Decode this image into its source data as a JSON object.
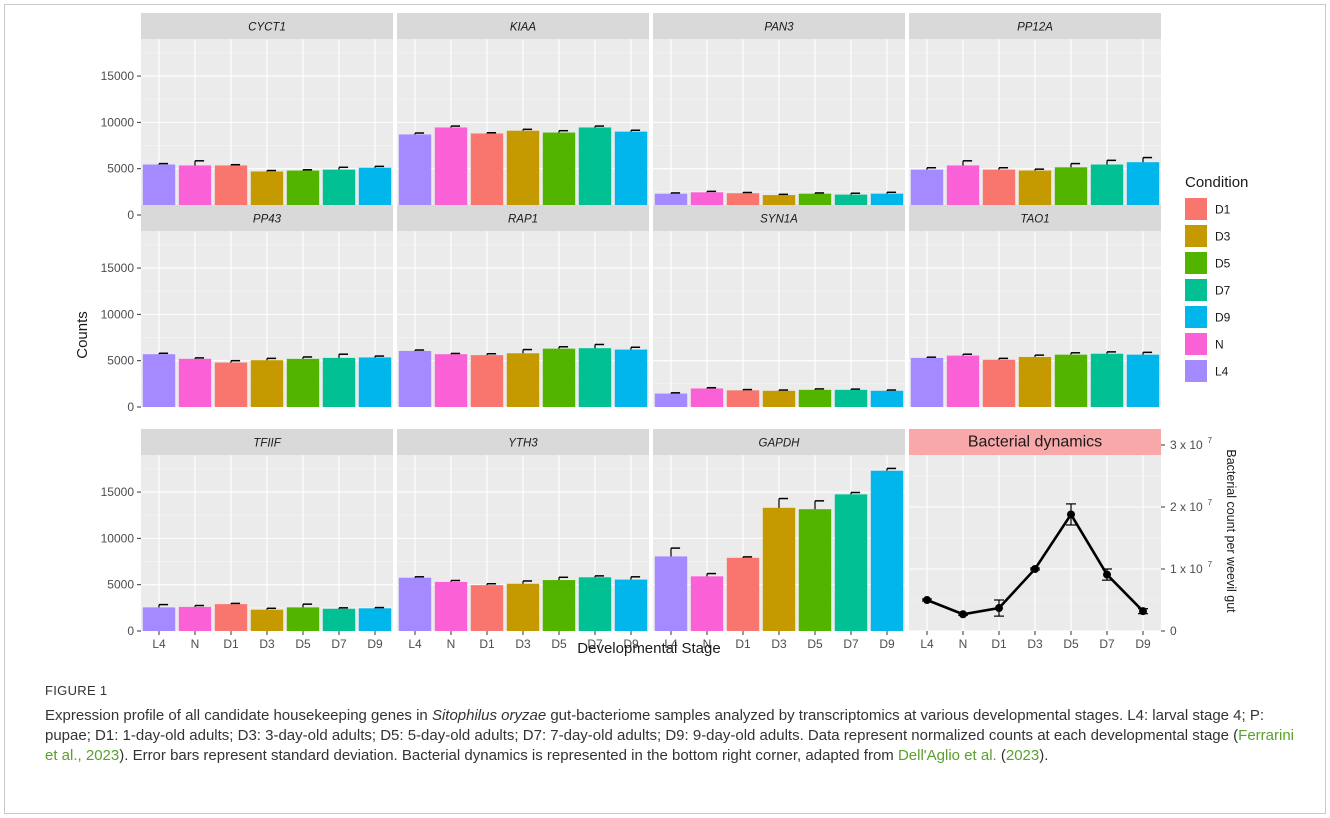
{
  "chart_data": {
    "type": "bar",
    "layout": "facet-grid",
    "xlabel": "Developmental Stage",
    "ylabel": "Counts",
    "categories": [
      "L4",
      "N",
      "D1",
      "D3",
      "D5",
      "D7",
      "D9"
    ],
    "ylim": [
      0,
      19000
    ],
    "yticks": [
      0,
      5000,
      10000,
      15000
    ],
    "grid": true,
    "legend": {
      "title": "Condition",
      "placement": "right",
      "items": [
        {
          "label": "D1",
          "color": "#F8766D"
        },
        {
          "label": "D3",
          "color": "#C49A00"
        },
        {
          "label": "D5",
          "color": "#53B400"
        },
        {
          "label": "D7",
          "color": "#00C094"
        },
        {
          "label": "D9",
          "color": "#00B6EB"
        },
        {
          "label": "N",
          "color": "#FB61D7"
        },
        {
          "label": "L4",
          "color": "#A58AFF"
        }
      ]
    },
    "colors": {
      "L4": "#A58AFF",
      "N": "#FB61D7",
      "D1": "#F8766D",
      "D3": "#C49A00",
      "D5": "#53B400",
      "D7": "#00C094",
      "D9": "#00B6EB"
    },
    "panels": [
      {
        "title": "CYCT1",
        "values": [
          5450,
          5350,
          5350,
          4700,
          4800,
          4900,
          5100
        ],
        "errors": [
          100,
          500,
          80,
          100,
          80,
          250,
          150
        ]
      },
      {
        "title": "KIAA",
        "values": [
          8700,
          9450,
          8800,
          9100,
          8900,
          9450,
          9000
        ],
        "errors": [
          150,
          150,
          80,
          150,
          200,
          150,
          150
        ]
      },
      {
        "title": "PAN3",
        "values": [
          2300,
          2450,
          2350,
          2150,
          2300,
          2200,
          2300
        ],
        "errors": [
          80,
          100,
          80,
          80,
          80,
          150,
          150
        ]
      },
      {
        "title": "PP12A",
        "values": [
          4900,
          5350,
          4900,
          4800,
          5150,
          5450,
          5700
        ],
        "errors": [
          200,
          500,
          200,
          150,
          400,
          450,
          500
        ]
      },
      {
        "title": "PP43",
        "values": [
          5700,
          5200,
          4800,
          5050,
          5200,
          5300,
          5350
        ],
        "errors": [
          100,
          100,
          200,
          200,
          200,
          400,
          150
        ]
      },
      {
        "title": "RAP1",
        "values": [
          6050,
          5700,
          5600,
          5800,
          6300,
          6350,
          6200
        ],
        "errors": [
          100,
          80,
          150,
          400,
          200,
          400,
          250
        ]
      },
      {
        "title": "SYN1A",
        "values": [
          1450,
          2000,
          1800,
          1750,
          1850,
          1850,
          1750
        ],
        "errors": [
          80,
          80,
          80,
          80,
          100,
          80,
          80
        ]
      },
      {
        "title": "TAO1",
        "values": [
          5300,
          5550,
          5100,
          5400,
          5650,
          5750,
          5650
        ],
        "errors": [
          80,
          150,
          150,
          200,
          200,
          200,
          250
        ]
      },
      {
        "title": "TFIIF",
        "values": [
          2550,
          2600,
          2900,
          2300,
          2550,
          2400,
          2450
        ],
        "errors": [
          300,
          150,
          80,
          150,
          350,
          100,
          80
        ]
      },
      {
        "title": "YTH3",
        "values": [
          5750,
          5300,
          4950,
          5100,
          5500,
          5800,
          5550
        ],
        "errors": [
          100,
          150,
          150,
          300,
          300,
          150,
          300
        ]
      },
      {
        "title": "GAPDH",
        "values": [
          8050,
          5900,
          7900,
          13300,
          13150,
          14750,
          17300
        ],
        "errors": [
          900,
          300,
          100,
          1000,
          900,
          200,
          250
        ]
      }
    ],
    "secondary": {
      "type": "line",
      "title": "Bacterial dynamics",
      "ylabel": "Bacterial count per weevil gut",
      "ylim": [
        0,
        30000000
      ],
      "yticks_values": [
        0,
        10000000,
        20000000,
        30000000
      ],
      "ytick_labels": [
        {
          "mantissa": "0",
          "exp": ""
        },
        {
          "mantissa": "1 x 10",
          "exp": "7"
        },
        {
          "mantissa": "2 x 10",
          "exp": "7"
        },
        {
          "mantissa": "3 x 10",
          "exp": "7"
        }
      ],
      "values": [
        5000000,
        2700000,
        3700000,
        10000000,
        18800000,
        9100000,
        3200000
      ],
      "errors": [
        150000,
        150000,
        1300000,
        150000,
        1700000,
        900000,
        400000
      ],
      "title_bg": "#F8A8A8"
    }
  },
  "caption": {
    "label": "FIGURE 1",
    "t1": "Expression profile of all candidate housekeeping genes in ",
    "t2": "Sitophilus oryzae",
    "t3": " gut-bacteriome samples analyzed by transcriptomics at various developmental stages. L4: larval stage 4; P: pupae; D1: 1-day-old adults; D3: 3-day-old adults; D5: 5-day-old adults; D7: 7-day-old adults; D9: 9-day-old adults. Data represent normalized counts at each developmental stage (",
    "link1": "Ferrarini et al., 2023",
    "t4": "). Error bars represent standard deviation. Bacterial dynamics is represented in the bottom right corner, adapted from ",
    "link2": "Dell'Aglio et al.",
    "t5": " (",
    "link3": "2023",
    "t6": ")."
  }
}
